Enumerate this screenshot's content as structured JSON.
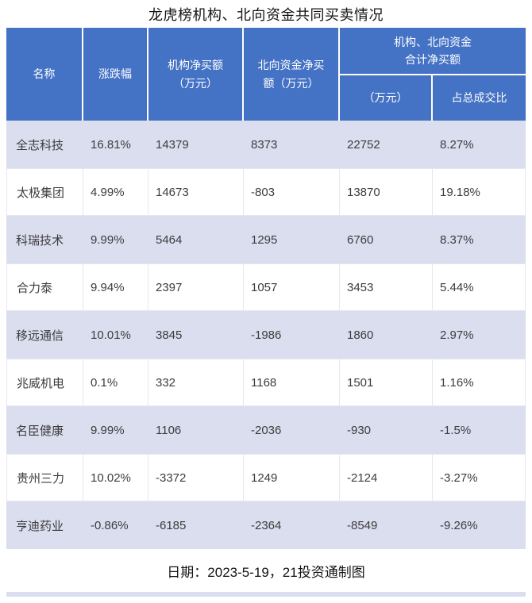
{
  "title": "龙虎榜机构、北向资金共同买卖情况",
  "colors": {
    "header_bg": "#4472C4",
    "alt_row_bg": "#DBDEEF",
    "grid_line": "#E6E7F0",
    "header_text": "#FFFFFF",
    "body_text": "#3C3C3C"
  },
  "header": {
    "name": "名称",
    "change": "涨跌幅",
    "inst_net": "机构净买额\n（万元）",
    "north_net": "北向资金净买\n额（万元）",
    "merged": "机构、北向资金\n合计净买额",
    "merged_sub_amount": "（万元）",
    "merged_sub_ratio": "占总成交比"
  },
  "rows": [
    {
      "name": "全志科技",
      "change": "16.81%",
      "inst_net": "14379",
      "north_net": "8373",
      "total_net": "22752",
      "ratio": "8.27%"
    },
    {
      "name": "太极集团",
      "change": "4.99%",
      "inst_net": "14673",
      "north_net": "-803",
      "total_net": "13870",
      "ratio": "19.18%"
    },
    {
      "name": "科瑞技术",
      "change": "9.99%",
      "inst_net": "5464",
      "north_net": "1295",
      "total_net": "6760",
      "ratio": "8.37%"
    },
    {
      "name": "合力泰",
      "change": "9.94%",
      "inst_net": "2397",
      "north_net": "1057",
      "total_net": "3453",
      "ratio": "5.44%"
    },
    {
      "name": "移远通信",
      "change": "10.01%",
      "inst_net": "3845",
      "north_net": "-1986",
      "total_net": "1860",
      "ratio": "2.97%"
    },
    {
      "name": "兆威机电",
      "change": "0.1%",
      "inst_net": "332",
      "north_net": "1168",
      "total_net": "1501",
      "ratio": "1.16%"
    },
    {
      "name": "名臣健康",
      "change": "9.99%",
      "inst_net": "1106",
      "north_net": "-2036",
      "total_net": "-930",
      "ratio": "-1.5%"
    },
    {
      "name": "贵州三力",
      "change": "10.02%",
      "inst_net": "-3372",
      "north_net": "1249",
      "total_net": "-2124",
      "ratio": "-3.27%"
    },
    {
      "name": "亨迪药业",
      "change": "-0.86%",
      "inst_net": "-6185",
      "north_net": "-2364",
      "total_net": "-8549",
      "ratio": "-9.26%"
    }
  ],
  "footer": "日期：2023-5-19，21投资通制图",
  "chart_data": {
    "type": "table",
    "title": "龙虎榜机构、北向资金共同买卖情况",
    "columns": [
      "名称",
      "涨跌幅",
      "机构净买额（万元）",
      "北向资金净买额（万元）",
      "机构、北向资金合计净买额（万元）",
      "机构、北向资金合计净买额占总成交比"
    ],
    "rows": [
      [
        "全志科技",
        "16.81%",
        14379,
        8373,
        22752,
        "8.27%"
      ],
      [
        "太极集团",
        "4.99%",
        14673,
        -803,
        13870,
        "19.18%"
      ],
      [
        "科瑞技术",
        "9.99%",
        5464,
        1295,
        6760,
        "8.37%"
      ],
      [
        "合力泰",
        "9.94%",
        2397,
        1057,
        3453,
        "5.44%"
      ],
      [
        "移远通信",
        "10.01%",
        3845,
        -1986,
        1860,
        "2.97%"
      ],
      [
        "兆威机电",
        "0.1%",
        332,
        1168,
        1501,
        "1.16%"
      ],
      [
        "名臣健康",
        "9.99%",
        1106,
        -2036,
        -930,
        "-1.5%"
      ],
      [
        "贵州三力",
        "10.02%",
        -3372,
        1249,
        -2124,
        "-3.27%"
      ],
      [
        "亨迪药业",
        "-0.86%",
        -6185,
        -2364,
        -8549,
        "-9.26%"
      ]
    ],
    "footnote": "日期：2023-5-19，21投资通制图"
  }
}
